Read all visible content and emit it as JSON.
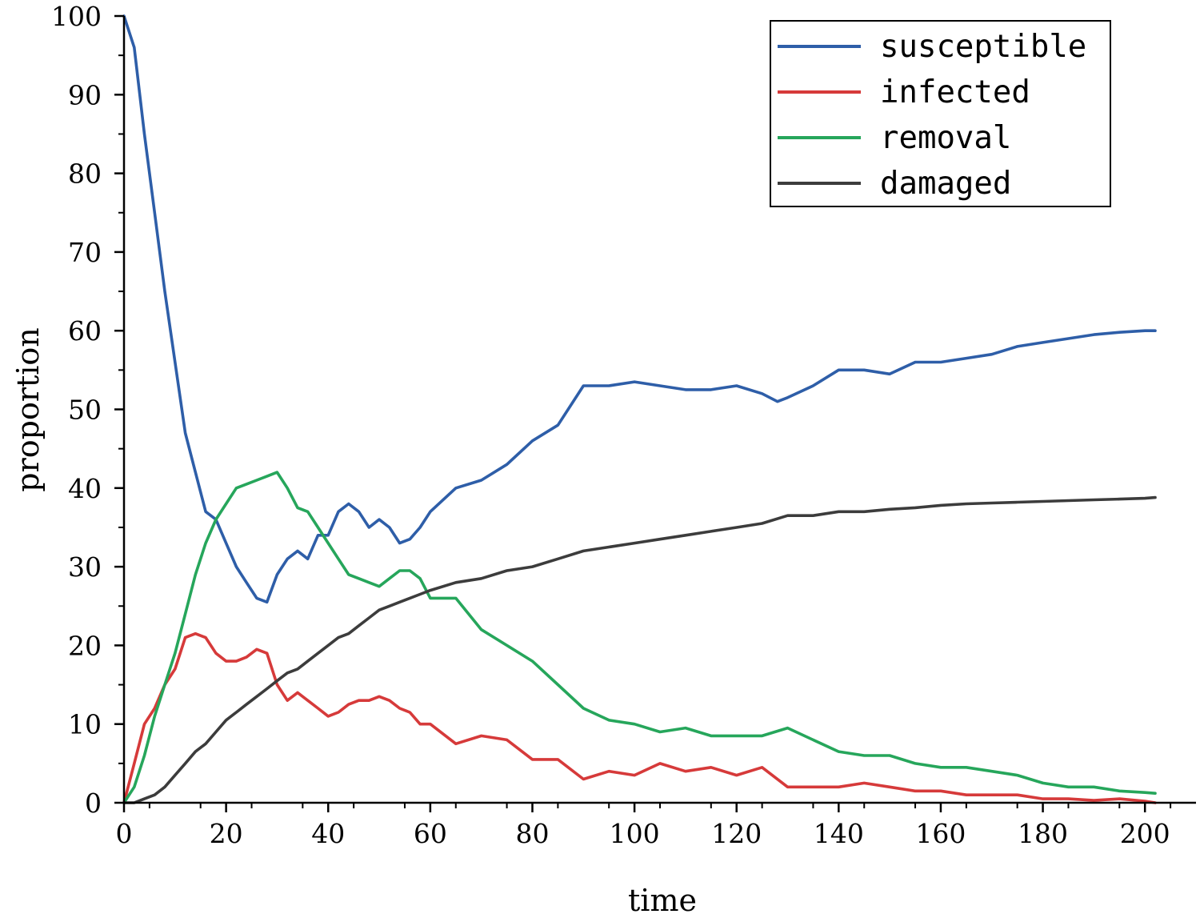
{
  "chart_data": {
    "type": "line",
    "title": "",
    "xlabel": "time",
    "ylabel": "proportion",
    "xlim": [
      0,
      210
    ],
    "ylim": [
      0,
      100
    ],
    "xticks": [
      0,
      20,
      40,
      60,
      80,
      100,
      120,
      140,
      160,
      180,
      200
    ],
    "yticks": [
      0,
      10,
      20,
      30,
      40,
      50,
      60,
      70,
      80,
      90,
      100
    ],
    "legend_position": "top-right",
    "grid": false,
    "series": [
      {
        "name": "susceptible",
        "color": "#2e5ea8",
        "x": [
          0,
          2,
          4,
          6,
          8,
          10,
          12,
          14,
          16,
          18,
          20,
          22,
          24,
          26,
          28,
          30,
          32,
          34,
          36,
          38,
          40,
          42,
          44,
          46,
          48,
          50,
          52,
          54,
          56,
          58,
          60,
          65,
          70,
          75,
          80,
          85,
          90,
          95,
          100,
          105,
          110,
          115,
          120,
          125,
          128,
          130,
          135,
          140,
          145,
          150,
          155,
          160,
          165,
          170,
          175,
          180,
          185,
          190,
          195,
          200,
          202
        ],
        "values": [
          100,
          96,
          85,
          75,
          65,
          56,
          47,
          42,
          37,
          36,
          33,
          30,
          28,
          26,
          25.5,
          29,
          31,
          32,
          31,
          34,
          34,
          37,
          38,
          37,
          35,
          36,
          35,
          33,
          33.5,
          35,
          37,
          40,
          41,
          43,
          46,
          48,
          53,
          53,
          53.5,
          53,
          52.5,
          52.5,
          53,
          52,
          51,
          51.5,
          53,
          55,
          55,
          54.5,
          56,
          56,
          56.5,
          57,
          58,
          58.5,
          59,
          59.5,
          59.8,
          60,
          60
        ]
      },
      {
        "name": "infected",
        "color": "#d63a3a",
        "x": [
          0,
          2,
          4,
          6,
          8,
          10,
          12,
          14,
          16,
          18,
          20,
          22,
          24,
          26,
          28,
          30,
          32,
          34,
          36,
          38,
          40,
          42,
          44,
          46,
          48,
          50,
          52,
          54,
          56,
          58,
          60,
          65,
          70,
          75,
          80,
          85,
          90,
          95,
          100,
          105,
          110,
          115,
          120,
          125,
          130,
          135,
          140,
          145,
          150,
          155,
          160,
          165,
          170,
          175,
          180,
          185,
          190,
          195,
          200,
          202
        ],
        "values": [
          0,
          5,
          10,
          12,
          15,
          17,
          21,
          21.5,
          21,
          19,
          18,
          18,
          18.5,
          19.5,
          19,
          15,
          13,
          14,
          13,
          12,
          11,
          11.5,
          12.5,
          13,
          13,
          13.5,
          13,
          12,
          11.5,
          10,
          10,
          7.5,
          8.5,
          8,
          5.5,
          5.5,
          3,
          4,
          3.5,
          5,
          4,
          4.5,
          3.5,
          4.5,
          2,
          2,
          2,
          2.5,
          2,
          1.5,
          1.5,
          1,
          1,
          1,
          0.5,
          0.5,
          0.3,
          0.5,
          0.2,
          0
        ]
      },
      {
        "name": "removal",
        "color": "#26a65b",
        "x": [
          0,
          2,
          4,
          6,
          8,
          10,
          12,
          14,
          16,
          18,
          20,
          22,
          24,
          26,
          28,
          30,
          32,
          34,
          36,
          38,
          40,
          42,
          44,
          46,
          48,
          50,
          52,
          54,
          56,
          58,
          60,
          65,
          70,
          75,
          80,
          85,
          90,
          95,
          100,
          105,
          110,
          115,
          120,
          125,
          130,
          135,
          140,
          145,
          150,
          155,
          160,
          165,
          170,
          175,
          180,
          185,
          190,
          195,
          200,
          202
        ],
        "values": [
          0,
          2,
          6,
          11,
          15,
          19,
          24,
          29,
          33,
          36,
          38,
          40,
          40.5,
          41,
          41.5,
          42,
          40,
          37.5,
          37,
          35,
          33,
          31,
          29,
          28.5,
          28,
          27.5,
          28.5,
          29.5,
          29.5,
          28.5,
          26,
          26,
          22,
          20,
          18,
          15,
          12,
          10.5,
          10,
          9,
          9.5,
          8.5,
          8.5,
          8.5,
          9.5,
          8,
          6.5,
          6,
          6,
          5,
          4.5,
          4.5,
          4,
          3.5,
          2.5,
          2,
          2,
          1.5,
          1.3,
          1.2
        ]
      },
      {
        "name": "damaged",
        "color": "#3c3c3c",
        "x": [
          0,
          2,
          4,
          6,
          8,
          10,
          12,
          14,
          16,
          18,
          20,
          22,
          24,
          26,
          28,
          30,
          32,
          34,
          36,
          38,
          40,
          42,
          44,
          46,
          48,
          50,
          52,
          54,
          56,
          58,
          60,
          65,
          70,
          75,
          80,
          85,
          90,
          95,
          100,
          105,
          110,
          115,
          120,
          125,
          130,
          135,
          140,
          145,
          150,
          155,
          160,
          165,
          170,
          175,
          180,
          185,
          190,
          195,
          200,
          202
        ],
        "values": [
          0,
          0,
          0.5,
          1,
          2,
          3.5,
          5,
          6.5,
          7.5,
          9,
          10.5,
          11.5,
          12.5,
          13.5,
          14.5,
          15.5,
          16.5,
          17,
          18,
          19,
          20,
          21,
          21.5,
          22.5,
          23.5,
          24.5,
          25,
          25.5,
          26,
          26.5,
          27,
          28,
          28.5,
          29.5,
          30,
          31,
          32,
          32.5,
          33,
          33.5,
          34,
          34.5,
          35,
          35.5,
          36.5,
          36.5,
          37,
          37,
          37.3,
          37.5,
          37.8,
          38,
          38.1,
          38.2,
          38.3,
          38.4,
          38.5,
          38.6,
          38.7,
          38.8
        ]
      }
    ]
  }
}
